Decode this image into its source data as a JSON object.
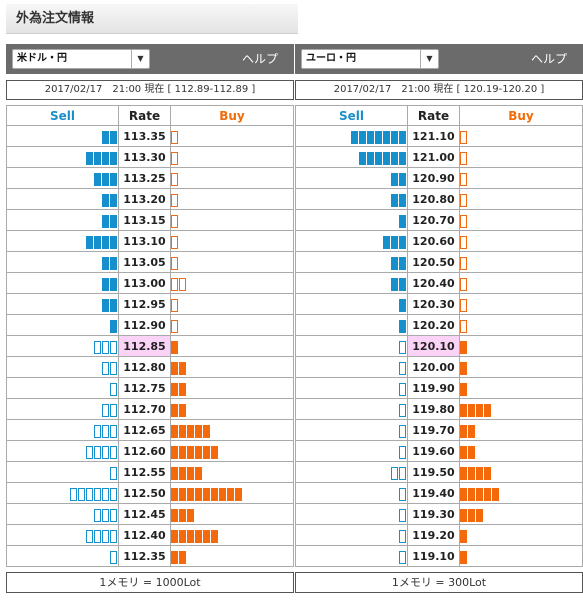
{
  "page_title": "外為注文情報",
  "colors": {
    "sell": "#1590cc",
    "buy": "#f3690b",
    "header_bar": "#6b6b6b",
    "current_rate_bg": "#fbd3f6"
  },
  "panels": [
    {
      "pair": "米ドル・円",
      "help": "ヘルプ",
      "datetime_text": "2017/02/17　21:00 現在 [ 112.89-112.89 ]",
      "col_sell": "Sell",
      "col_rate": "Rate",
      "col_buy": "Buy",
      "footer": "1メモリ = 1000Lot",
      "current_rate": "112.85",
      "rows": [
        {
          "rate": "113.35",
          "sell": 2,
          "sell_type": "filled",
          "buy": 1,
          "buy_type": "empty"
        },
        {
          "rate": "113.30",
          "sell": 4,
          "sell_type": "filled",
          "buy": 1,
          "buy_type": "empty"
        },
        {
          "rate": "113.25",
          "sell": 3,
          "sell_type": "filled",
          "buy": 1,
          "buy_type": "empty"
        },
        {
          "rate": "113.20",
          "sell": 2,
          "sell_type": "filled",
          "buy": 1,
          "buy_type": "empty"
        },
        {
          "rate": "113.15",
          "sell": 2,
          "sell_type": "filled",
          "buy": 1,
          "buy_type": "empty"
        },
        {
          "rate": "113.10",
          "sell": 4,
          "sell_type": "filled",
          "buy": 1,
          "buy_type": "empty"
        },
        {
          "rate": "113.05",
          "sell": 2,
          "sell_type": "filled",
          "buy": 1,
          "buy_type": "empty"
        },
        {
          "rate": "113.00",
          "sell": 2,
          "sell_type": "filled",
          "buy": 2,
          "buy_type": "empty"
        },
        {
          "rate": "112.95",
          "sell": 2,
          "sell_type": "filled",
          "buy": 1,
          "buy_type": "empty"
        },
        {
          "rate": "112.90",
          "sell": 1,
          "sell_type": "filled",
          "buy": 1,
          "buy_type": "empty"
        },
        {
          "rate": "112.85",
          "sell": 3,
          "sell_type": "empty",
          "buy": 1,
          "buy_type": "filled"
        },
        {
          "rate": "112.80",
          "sell": 2,
          "sell_type": "empty",
          "buy": 2,
          "buy_type": "filled"
        },
        {
          "rate": "112.75",
          "sell": 1,
          "sell_type": "empty",
          "buy": 2,
          "buy_type": "filled"
        },
        {
          "rate": "112.70",
          "sell": 2,
          "sell_type": "empty",
          "buy": 2,
          "buy_type": "filled"
        },
        {
          "rate": "112.65",
          "sell": 3,
          "sell_type": "empty",
          "buy": 5,
          "buy_type": "filled"
        },
        {
          "rate": "112.60",
          "sell": 4,
          "sell_type": "empty",
          "buy": 6,
          "buy_type": "filled"
        },
        {
          "rate": "112.55",
          "sell": 1,
          "sell_type": "empty",
          "buy": 4,
          "buy_type": "filled"
        },
        {
          "rate": "112.50",
          "sell": 6,
          "sell_type": "empty",
          "buy": 9,
          "buy_type": "filled"
        },
        {
          "rate": "112.45",
          "sell": 3,
          "sell_type": "empty",
          "buy": 3,
          "buy_type": "filled"
        },
        {
          "rate": "112.40",
          "sell": 4,
          "sell_type": "empty",
          "buy": 6,
          "buy_type": "filled"
        },
        {
          "rate": "112.35",
          "sell": 1,
          "sell_type": "empty",
          "buy": 2,
          "buy_type": "filled"
        }
      ]
    },
    {
      "pair": "ユーロ・円",
      "help": "ヘルプ",
      "datetime_text": "2017/02/17　21:00 現在 [ 120.19-120.20 ]",
      "col_sell": "Sell",
      "col_rate": "Rate",
      "col_buy": "Buy",
      "footer": "1メモリ = 300Lot",
      "current_rate": "120.10",
      "rows": [
        {
          "rate": "121.10",
          "sell": 7,
          "sell_type": "filled",
          "buy": 1,
          "buy_type": "empty"
        },
        {
          "rate": "121.00",
          "sell": 6,
          "sell_type": "filled",
          "buy": 1,
          "buy_type": "empty"
        },
        {
          "rate": "120.90",
          "sell": 2,
          "sell_type": "filled",
          "buy": 1,
          "buy_type": "empty"
        },
        {
          "rate": "120.80",
          "sell": 2,
          "sell_type": "filled",
          "buy": 1,
          "buy_type": "empty"
        },
        {
          "rate": "120.70",
          "sell": 1,
          "sell_type": "filled",
          "buy": 1,
          "buy_type": "empty"
        },
        {
          "rate": "120.60",
          "sell": 3,
          "sell_type": "filled",
          "buy": 1,
          "buy_type": "empty"
        },
        {
          "rate": "120.50",
          "sell": 2,
          "sell_type": "filled",
          "buy": 1,
          "buy_type": "empty"
        },
        {
          "rate": "120.40",
          "sell": 2,
          "sell_type": "filled",
          "buy": 1,
          "buy_type": "empty"
        },
        {
          "rate": "120.30",
          "sell": 1,
          "sell_type": "filled",
          "buy": 1,
          "buy_type": "empty"
        },
        {
          "rate": "120.20",
          "sell": 1,
          "sell_type": "filled",
          "buy": 1,
          "buy_type": "empty"
        },
        {
          "rate": "120.10",
          "sell": 1,
          "sell_type": "empty",
          "buy": 1,
          "buy_type": "filled"
        },
        {
          "rate": "120.00",
          "sell": 1,
          "sell_type": "empty",
          "buy": 1,
          "buy_type": "filled"
        },
        {
          "rate": "119.90",
          "sell": 1,
          "sell_type": "empty",
          "buy": 1,
          "buy_type": "filled"
        },
        {
          "rate": "119.80",
          "sell": 1,
          "sell_type": "empty",
          "buy": 4,
          "buy_type": "filled"
        },
        {
          "rate": "119.70",
          "sell": 1,
          "sell_type": "empty",
          "buy": 2,
          "buy_type": "filled"
        },
        {
          "rate": "119.60",
          "sell": 1,
          "sell_type": "empty",
          "buy": 2,
          "buy_type": "filled"
        },
        {
          "rate": "119.50",
          "sell": 2,
          "sell_type": "empty",
          "buy": 4,
          "buy_type": "filled"
        },
        {
          "rate": "119.40",
          "sell": 1,
          "sell_type": "empty",
          "buy": 5,
          "buy_type": "filled"
        },
        {
          "rate": "119.30",
          "sell": 1,
          "sell_type": "empty",
          "buy": 3,
          "buy_type": "filled"
        },
        {
          "rate": "119.20",
          "sell": 1,
          "sell_type": "empty",
          "buy": 1,
          "buy_type": "filled"
        },
        {
          "rate": "119.10",
          "sell": 1,
          "sell_type": "empty",
          "buy": 1,
          "buy_type": "filled"
        }
      ]
    }
  ]
}
